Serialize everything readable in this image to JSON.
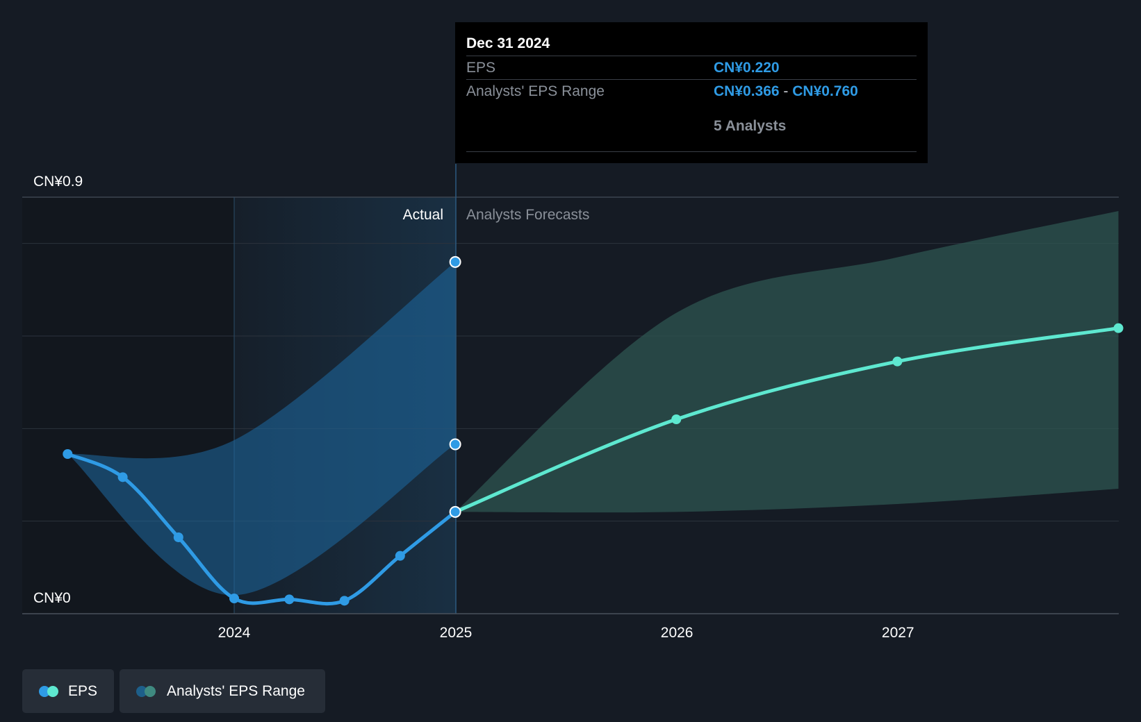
{
  "chart_data": {
    "type": "line",
    "y_axis": {
      "top_label": "CN¥0.9",
      "bottom_label": "CN¥0",
      "range": [
        0,
        0.9
      ],
      "grid": true
    },
    "x_axis": {
      "ticks": [
        "2024",
        "2025",
        "2026",
        "2027"
      ]
    },
    "regions": {
      "actual_label": "Actual",
      "forecast_label": "Analysts Forecasts"
    },
    "series": [
      {
        "name": "EPS",
        "kind": "actual",
        "points": [
          {
            "x": "2023-04-01",
            "y": 0.345
          },
          {
            "x": "2023-07-01",
            "y": 0.295
          },
          {
            "x": "2023-10-01",
            "y": 0.165
          },
          {
            "x": "2024-01-01",
            "y": 0.033
          },
          {
            "x": "2024-04-01",
            "y": 0.031
          },
          {
            "x": "2024-07-01",
            "y": 0.028
          },
          {
            "x": "2024-10-01",
            "y": 0.125
          },
          {
            "x": "2024-12-31",
            "y": 0.22
          }
        ]
      },
      {
        "name": "EPS",
        "kind": "forecast",
        "points": [
          {
            "x": "2024-12-31",
            "y": 0.22
          },
          {
            "x": "2025-12-31",
            "y": 0.42
          },
          {
            "x": "2026-12-31",
            "y": 0.545
          },
          {
            "x": "2027-12-31",
            "y": 0.617
          }
        ]
      }
    ],
    "ranges": [
      {
        "name": "Analysts' EPS Range",
        "kind": "actual",
        "upper": [
          {
            "x": "2023-04-01",
            "y": 0.345
          },
          {
            "x": "2024-01-01",
            "y": 0.375
          },
          {
            "x": "2024-12-31",
            "y": 0.76
          }
        ],
        "lower": [
          {
            "x": "2023-04-01",
            "y": 0.345
          },
          {
            "x": "2024-01-01",
            "y": 0.04
          },
          {
            "x": "2024-12-31",
            "y": 0.366
          }
        ]
      },
      {
        "name": "Analysts' EPS Range",
        "kind": "forecast",
        "upper": [
          {
            "x": "2024-12-31",
            "y": 0.22
          },
          {
            "x": "2025-12-31",
            "y": 0.65
          },
          {
            "x": "2026-12-31",
            "y": 0.77
          },
          {
            "x": "2027-12-31",
            "y": 0.87
          }
        ],
        "lower": [
          {
            "x": "2024-12-31",
            "y": 0.22
          },
          {
            "x": "2025-12-31",
            "y": 0.22
          },
          {
            "x": "2026-12-31",
            "y": 0.237
          },
          {
            "x": "2027-12-31",
            "y": 0.27
          }
        ]
      }
    ],
    "highlighted_points": [
      {
        "x": "2024-12-31",
        "y": 0.76
      },
      {
        "x": "2024-12-31",
        "y": 0.366
      },
      {
        "x": "2024-12-31",
        "y": 0.22
      }
    ],
    "legend": [
      {
        "label": "EPS",
        "colors": [
          "#2f9be5",
          "#5ee8d0"
        ]
      },
      {
        "label": "Analysts' EPS Range",
        "colors": [
          "#1d5f8a",
          "#3f8a80"
        ]
      }
    ],
    "colors": {
      "actual_line": "#2f9be5",
      "forecast_line": "#5ee8d0",
      "actual_range": "#1e6aa3",
      "forecast_range": "#2e5650"
    }
  },
  "tooltip": {
    "date": "Dec 31 2024",
    "eps_label": "EPS",
    "eps_value": "CN¥0.220",
    "range_label": "Analysts' EPS Range",
    "range_low": "CN¥0.366",
    "range_separator": "-",
    "range_high": "CN¥0.760",
    "analysts": "5 Analysts"
  },
  "legend": {
    "eps_label": "EPS",
    "range_label": "Analysts' EPS Range"
  }
}
